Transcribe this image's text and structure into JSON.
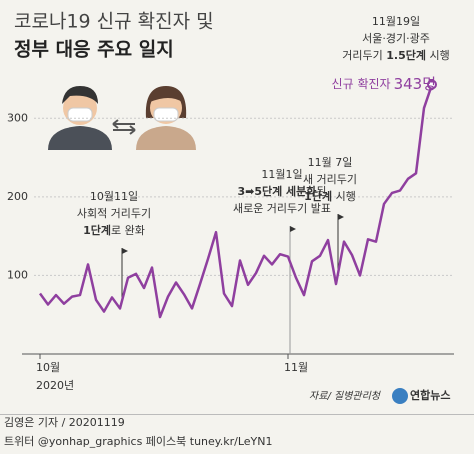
{
  "chart_data": {
    "type": "line",
    "title": "코로나19 신규 확진자 및",
    "subtitle": "정부 대응 주요 일지",
    "categories": [
      "10월",
      null,
      null,
      null,
      null,
      null,
      null,
      null,
      null,
      null,
      null,
      null,
      null,
      null,
      null,
      null,
      null,
      null,
      null,
      null,
      null,
      null,
      null,
      null,
      null,
      null,
      null,
      null,
      null,
      null,
      null,
      "11월",
      null,
      null,
      null,
      null,
      null,
      null,
      null,
      null,
      null,
      null,
      null,
      null,
      null,
      null,
      null,
      null,
      null,
      null
    ],
    "year_label": "2020년",
    "values": [
      77,
      63,
      75,
      64,
      73,
      75,
      114,
      69,
      54,
      72,
      58,
      97,
      102,
      84,
      110,
      47,
      73,
      91,
      76,
      58,
      89,
      121,
      155,
      77,
      61,
      119,
      88,
      103,
      125,
      114,
      127,
      124,
      97,
      75,
      118,
      125,
      145,
      89,
      143,
      126,
      100,
      146,
      143,
      191,
      205,
      208,
      223,
      230,
      313,
      343
    ],
    "value_labels": [
      null,
      null,
      null,
      null,
      null,
      null,
      null,
      null,
      null,
      null,
      null,
      null,
      null,
      null,
      null,
      null,
      null,
      null,
      null,
      null,
      null,
      null,
      null,
      null,
      null,
      null,
      null,
      null,
      null,
      null,
      null,
      null,
      null,
      null,
      null,
      null,
      null,
      null,
      null,
      null,
      null,
      null,
      null,
      null,
      null,
      null,
      null,
      null,
      null,
      "343명"
    ],
    "value_label_prefix": "신규 확진자",
    "color": "#8f3f9f",
    "ylim": [
      0,
      350
    ],
    "yticks": [
      100,
      200,
      300
    ],
    "grid": true,
    "annotations": [
      {
        "index": 10,
        "lines": [
          [
            {
              "text": "10월11일",
              "bold": false
            }
          ],
          [
            {
              "text": "사회적 거리두기",
              "bold": false
            }
          ],
          [
            {
              "text": "1단계",
              "bold": true
            },
            {
              "text": "로 완화",
              "bold": false
            }
          ]
        ]
      },
      {
        "index": 31,
        "lines": [
          [
            {
              "text": "11월1일",
              "bold": false
            }
          ],
          [
            {
              "text": "3➡5단계 세분화",
              "bold": true
            },
            {
              "text": "된",
              "bold": false
            }
          ],
          [
            {
              "text": "새로운 거리두기 발표",
              "bold": false
            }
          ]
        ]
      },
      {
        "index": 37,
        "lines": [
          [
            {
              "text": "11월 7일",
              "bold": false
            }
          ],
          [
            {
              "text": "새 거리두기",
              "bold": false
            }
          ],
          [
            {
              "text": "1단계",
              "bold": true
            },
            {
              "text": " 시행",
              "bold": false
            }
          ]
        ]
      },
      {
        "index": 49,
        "lines": [
          [
            {
              "text": "11월19일",
              "bold": false
            }
          ],
          [
            {
              "text": "서울·경기·광주",
              "bold": false
            }
          ],
          [
            {
              "text": "거리두기 ",
              "bold": false
            },
            {
              "text": "1.5단계",
              "bold": true
            },
            {
              "text": " 시행",
              "bold": false
            }
          ]
        ]
      }
    ],
    "source": "자료/ 질병관리청",
    "logo": "연합뉴스",
    "byline": "김영은 기자 / 20201119",
    "footer": "트위터 @yonhap_graphics  페이스북 tuney.kr/LeYN1"
  }
}
